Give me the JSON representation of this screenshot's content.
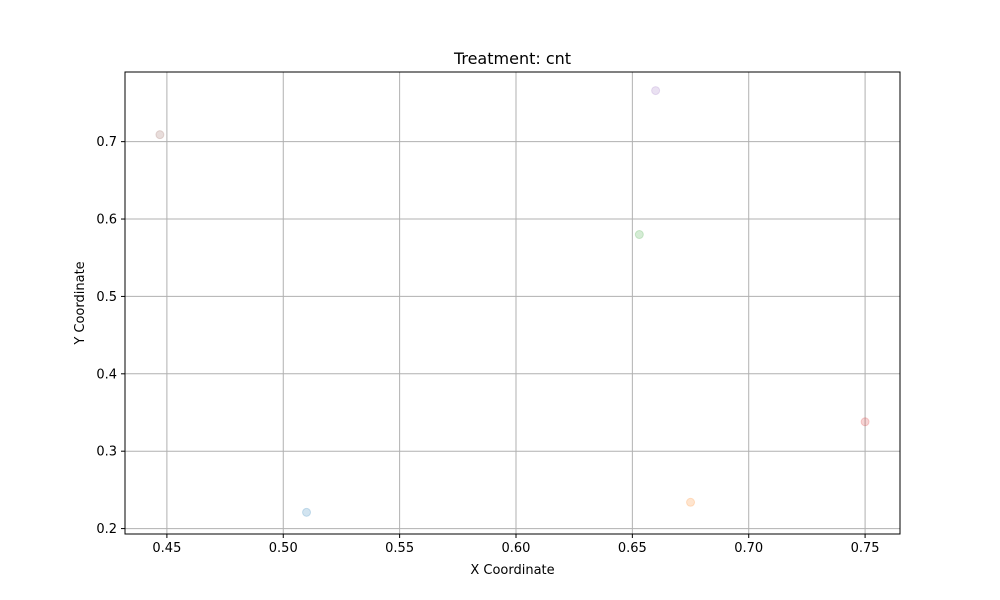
{
  "chart_data": {
    "type": "scatter",
    "title": "Treatment: cnt",
    "xlabel": "X Coordinate",
    "ylabel": "Y Coordinate",
    "xlim": [
      0.432,
      0.765
    ],
    "ylim": [
      0.193,
      0.79
    ],
    "grid": true,
    "xticks": [
      0.45,
      0.5,
      0.55,
      0.6,
      0.65,
      0.7,
      0.75
    ],
    "xtick_labels": [
      "0.45",
      "0.50",
      "0.55",
      "0.60",
      "0.65",
      "0.70",
      "0.75"
    ],
    "yticks": [
      0.2,
      0.3,
      0.4,
      0.5,
      0.6,
      0.7
    ],
    "ytick_labels": [
      "0.2",
      "0.3",
      "0.4",
      "0.5",
      "0.6",
      "0.7"
    ],
    "points": [
      {
        "x": 0.51,
        "y": 0.221,
        "color": "#1f77b4"
      },
      {
        "x": 0.675,
        "y": 0.234,
        "color": "#ff7f0e"
      },
      {
        "x": 0.653,
        "y": 0.58,
        "color": "#2ca02c"
      },
      {
        "x": 0.75,
        "y": 0.338,
        "color": "#d62728"
      },
      {
        "x": 0.66,
        "y": 0.766,
        "color": "#9467bd"
      },
      {
        "x": 0.447,
        "y": 0.709,
        "color": "#8c564b"
      }
    ],
    "point_alpha": 0.2
  }
}
